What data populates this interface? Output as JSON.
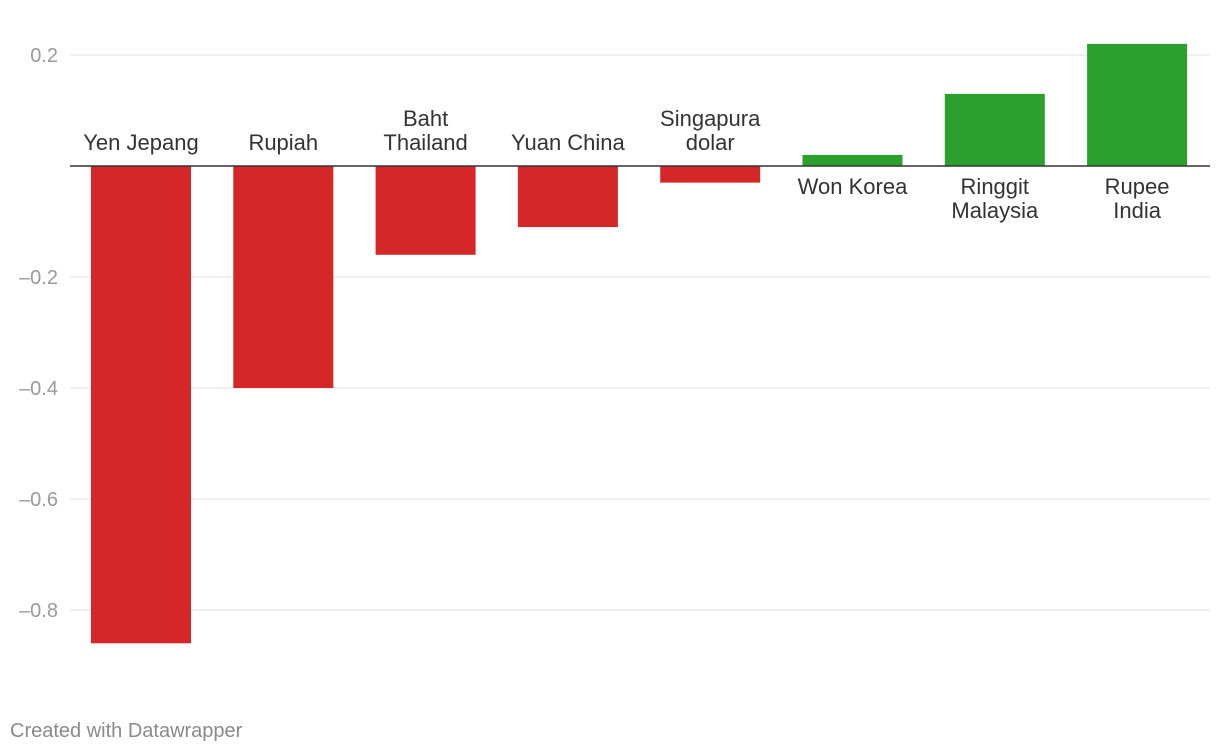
{
  "chart_data": {
    "type": "bar",
    "categories": [
      {
        "label": [
          "Yen Jepang"
        ],
        "value": -0.86
      },
      {
        "label": [
          "Rupiah"
        ],
        "value": -0.4
      },
      {
        "label": [
          "Baht",
          "Thailand"
        ],
        "value": -0.16
      },
      {
        "label": [
          "Yuan China"
        ],
        "value": -0.11
      },
      {
        "label": [
          "Singapura",
          "dolar"
        ],
        "value": -0.03
      },
      {
        "label": [
          "Won Korea"
        ],
        "value": 0.02
      },
      {
        "label": [
          "Ringgit",
          "Malaysia"
        ],
        "value": 0.13
      },
      {
        "label": [
          "Rupee",
          "India"
        ],
        "value": 0.22
      }
    ],
    "yticks": [
      {
        "value": 0.2,
        "label": "0.2"
      },
      {
        "value": -0.2,
        "label": "–0.2"
      },
      {
        "value": -0.4,
        "label": "–0.4"
      },
      {
        "value": -0.6,
        "label": "–0.6"
      },
      {
        "value": -0.8,
        "label": "–0.8"
      }
    ],
    "ylim": [
      -0.86,
      0.22
    ],
    "grid": true,
    "colors": {
      "negative": "#d62728",
      "positive": "#2ca02c",
      "grid": "#e2e2e2",
      "axis": "#333333"
    }
  },
  "footer": {
    "credit": "Created with Datawrapper"
  }
}
